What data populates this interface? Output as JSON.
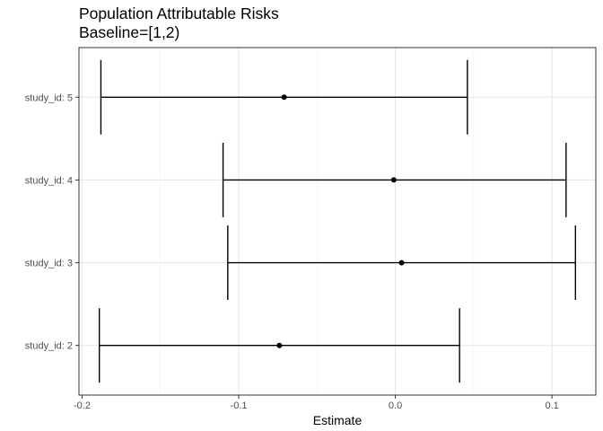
{
  "chart_data": {
    "type": "errorbar",
    "title": "Population Attributable Risks",
    "subtitle": "Baseline=[1,2)",
    "xlabel": "Estimate",
    "ylabel": "",
    "categories": [
      "study_id: 2",
      "study_id: 3",
      "study_id: 4",
      "study_id: 5"
    ],
    "estimates": [
      -0.074,
      0.004,
      -0.001,
      -0.071
    ],
    "lower": [
      -0.189,
      -0.107,
      -0.11,
      -0.188
    ],
    "upper": [
      0.041,
      0.115,
      0.109,
      0.046
    ],
    "xlim": [
      -0.202,
      0.128
    ],
    "xticks": [
      -0.2,
      -0.1,
      0.0,
      0.1
    ],
    "xtick_labels": [
      "-0.2",
      "-0.1",
      "0.0",
      "0.1"
    ],
    "grid": true,
    "theme": "bw"
  }
}
